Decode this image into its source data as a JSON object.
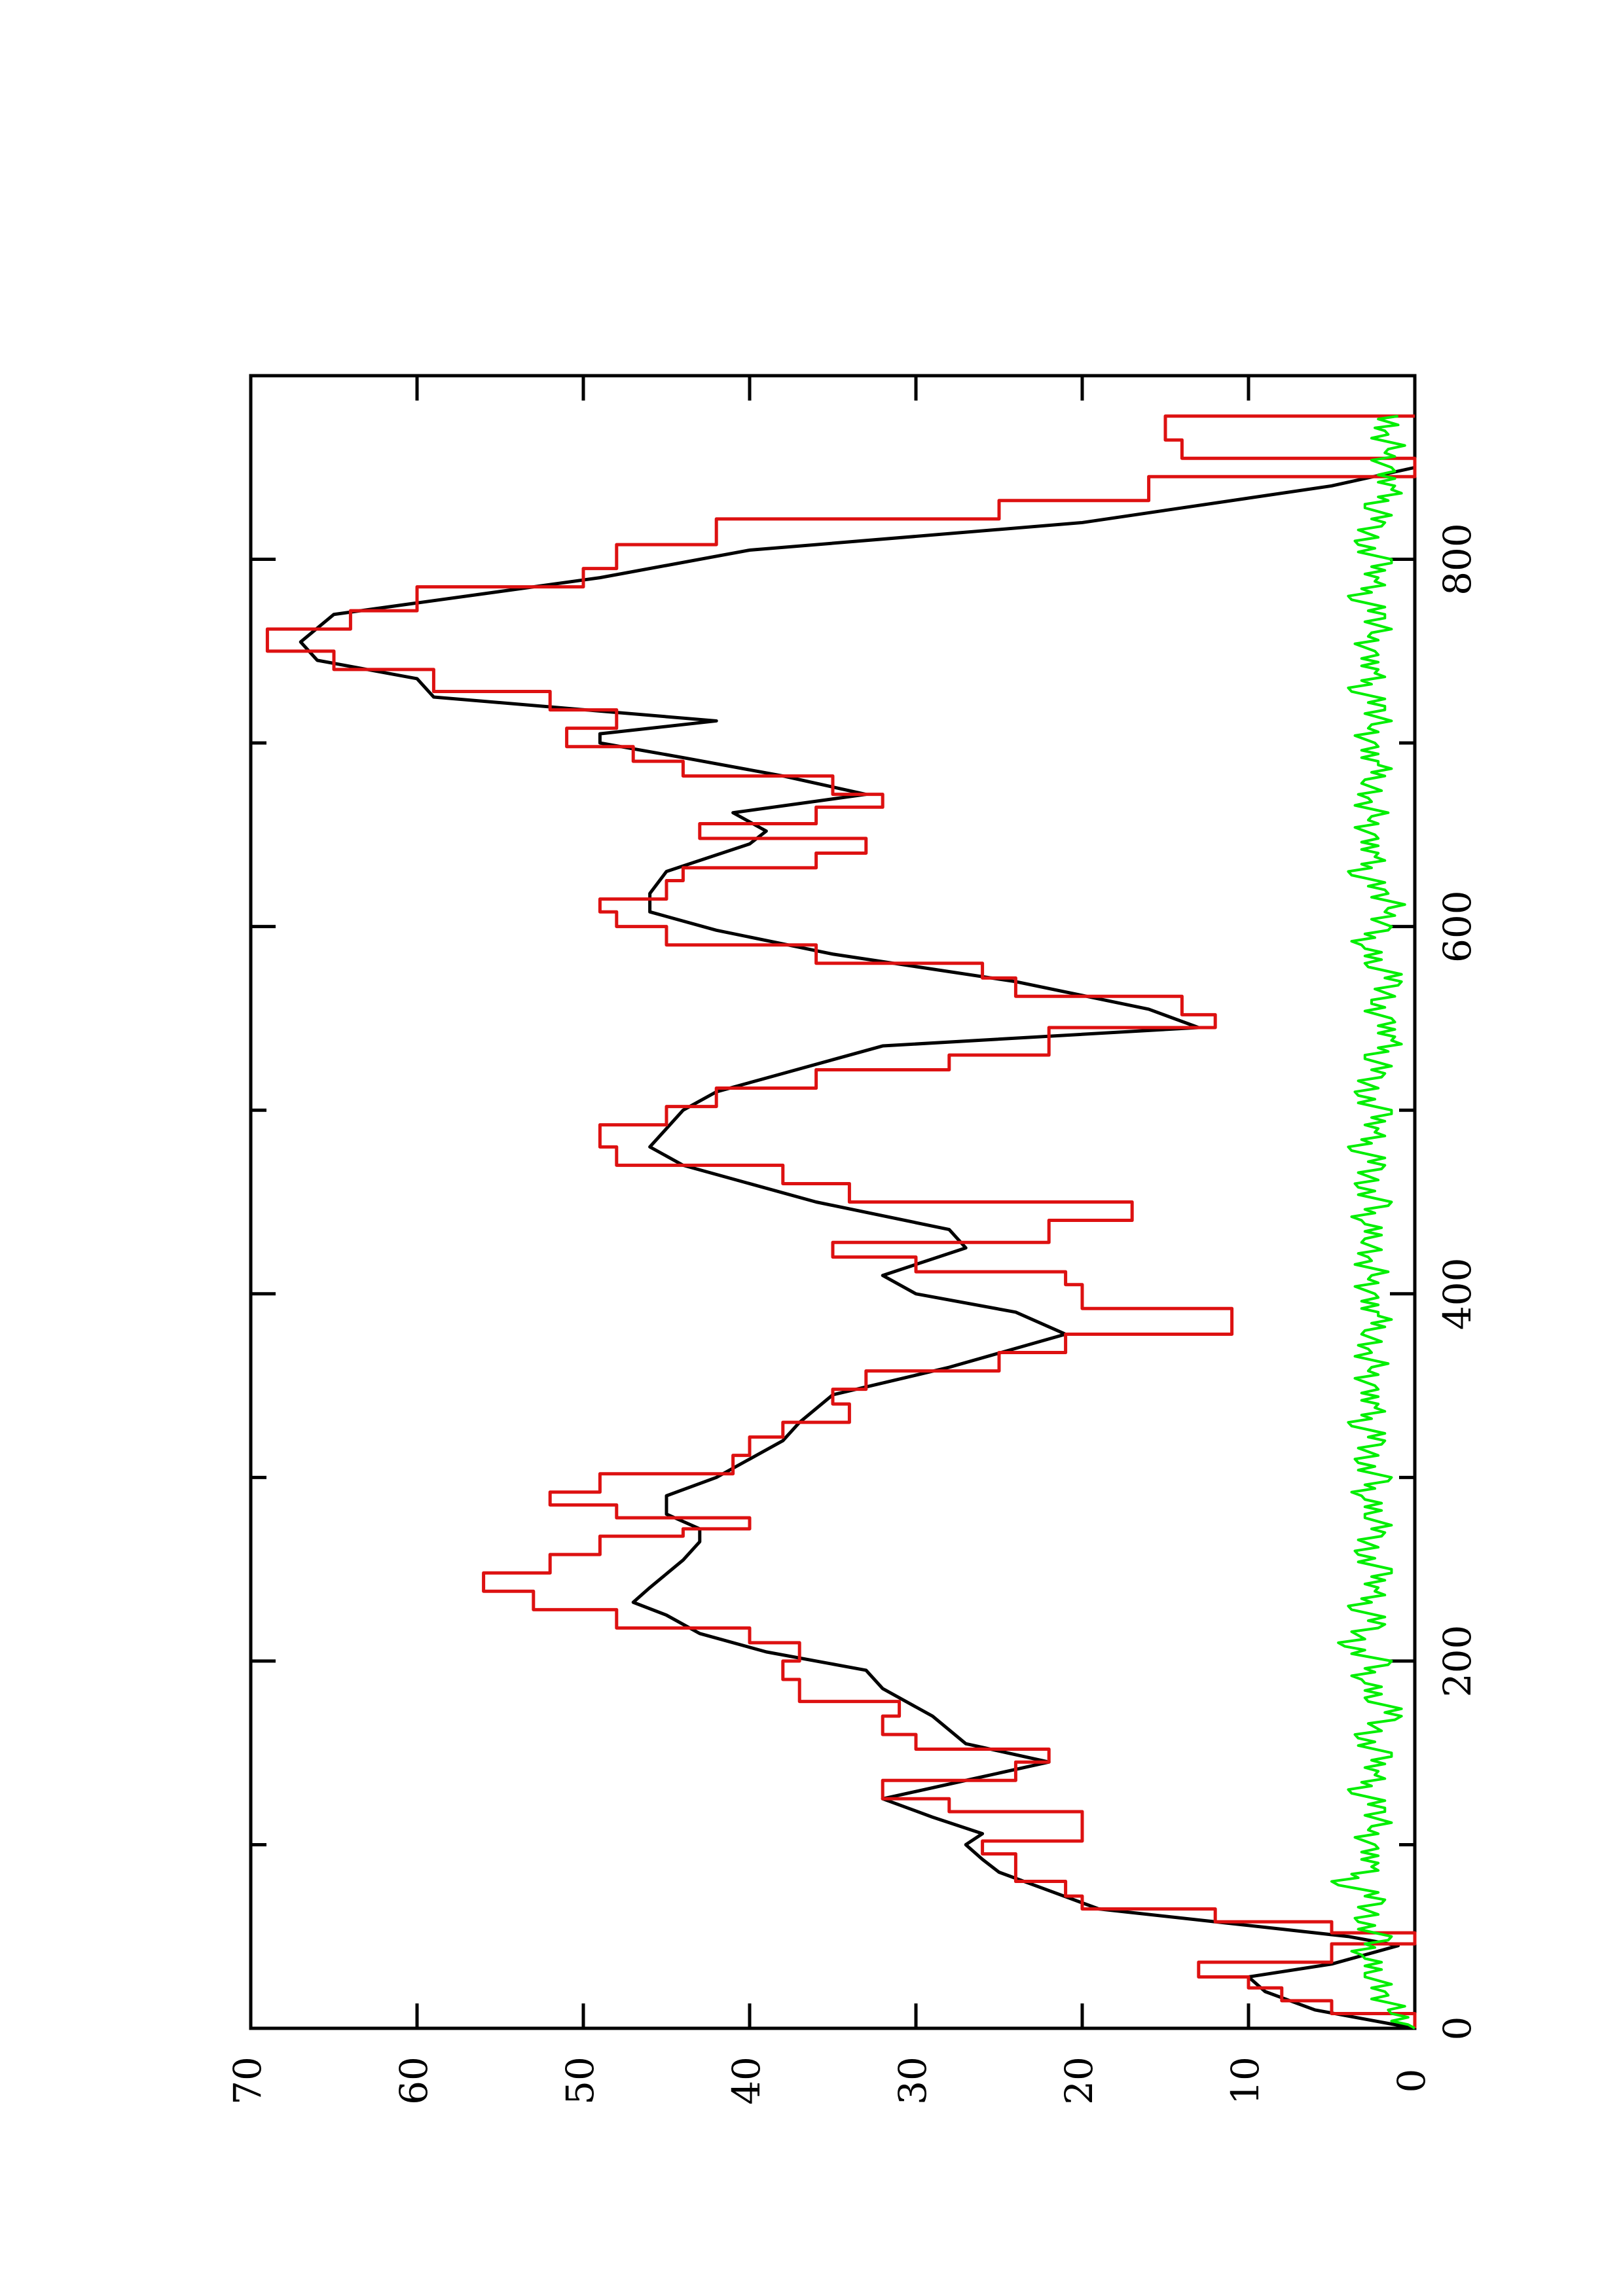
{
  "chart_data": {
    "type": "line",
    "title": "",
    "xlabel": "",
    "ylabel": "",
    "orientation": "rotated 90 degrees counter-clockwise",
    "xlim": [
      0,
      900
    ],
    "ylim": [
      0,
      70
    ],
    "x_ticks": [
      0,
      200,
      400,
      600,
      800
    ],
    "x_tick_labels": [
      "0",
      "200",
      "400",
      "600",
      "800"
    ],
    "x_minor_ticks": [
      100,
      300,
      500,
      700
    ],
    "y_ticks": [
      0,
      10,
      20,
      30,
      40,
      50,
      60,
      70
    ],
    "y_tick_labels": [
      "0",
      "10",
      "20",
      "30",
      "40",
      "50",
      "60",
      "70"
    ],
    "grid": false,
    "legend": "none",
    "series": [
      {
        "color": "#000000",
        "style": "smooth",
        "points": [
          [
            0,
            0
          ],
          [
            10,
            6
          ],
          [
            20,
            9
          ],
          [
            28,
            10
          ],
          [
            35,
            5
          ],
          [
            45,
            1
          ],
          [
            50,
            4
          ],
          [
            58,
            12
          ],
          [
            65,
            19
          ],
          [
            75,
            22
          ],
          [
            85,
            25
          ],
          [
            92,
            26
          ],
          [
            100,
            27
          ],
          [
            106,
            26
          ],
          [
            115,
            29
          ],
          [
            125,
            32
          ],
          [
            135,
            27
          ],
          [
            145,
            22
          ],
          [
            155,
            27
          ],
          [
            170,
            29
          ],
          [
            185,
            32
          ],
          [
            195,
            33
          ],
          [
            205,
            39
          ],
          [
            215,
            43
          ],
          [
            225,
            45
          ],
          [
            232,
            47
          ],
          [
            240,
            46
          ],
          [
            255,
            44
          ],
          [
            265,
            43
          ],
          [
            272,
            43
          ],
          [
            280,
            45
          ],
          [
            290,
            45
          ],
          [
            300,
            42
          ],
          [
            310,
            40
          ],
          [
            320,
            38
          ],
          [
            330,
            37
          ],
          [
            345,
            35
          ],
          [
            360,
            28
          ],
          [
            378,
            21
          ],
          [
            390,
            24
          ],
          [
            400,
            30
          ],
          [
            410,
            32
          ],
          [
            425,
            27
          ],
          [
            435,
            28
          ],
          [
            450,
            36
          ],
          [
            460,
            40
          ],
          [
            470,
            44
          ],
          [
            480,
            46
          ],
          [
            490,
            45
          ],
          [
            500,
            44
          ],
          [
            510,
            42
          ],
          [
            520,
            38
          ],
          [
            535,
            32
          ],
          [
            545,
            13
          ],
          [
            555,
            16
          ],
          [
            570,
            24
          ],
          [
            585,
            35
          ],
          [
            598,
            42
          ],
          [
            608,
            46
          ],
          [
            618,
            46
          ],
          [
            630,
            45
          ],
          [
            645,
            40
          ],
          [
            652,
            39
          ],
          [
            662,
            41
          ],
          [
            672,
            33
          ],
          [
            682,
            38
          ],
          [
            692,
            44
          ],
          [
            700,
            49
          ],
          [
            705,
            49
          ],
          [
            712,
            42
          ],
          [
            725,
            59
          ],
          [
            735,
            60
          ],
          [
            745,
            66
          ],
          [
            755,
            67
          ],
          [
            770,
            65
          ],
          [
            790,
            49
          ],
          [
            805,
            40
          ],
          [
            820,
            20
          ],
          [
            840,
            5
          ],
          [
            850,
            0
          ]
        ]
      },
      {
        "color": "#dd1111",
        "style": "steps",
        "points": [
          [
            0,
            0
          ],
          [
            8,
            5
          ],
          [
            15,
            8
          ],
          [
            22,
            10
          ],
          [
            28,
            13
          ],
          [
            36,
            5
          ],
          [
            46,
            0
          ],
          [
            52,
            5
          ],
          [
            58,
            12
          ],
          [
            65,
            20
          ],
          [
            72,
            21
          ],
          [
            80,
            24
          ],
          [
            88,
            24
          ],
          [
            95,
            26
          ],
          [
            102,
            20
          ],
          [
            110,
            20
          ],
          [
            118,
            28
          ],
          [
            125,
            32
          ],
          [
            135,
            24
          ],
          [
            145,
            22
          ],
          [
            152,
            30
          ],
          [
            160,
            32
          ],
          [
            170,
            31
          ],
          [
            178,
            37
          ],
          [
            190,
            38
          ],
          [
            200,
            37
          ],
          [
            210,
            40
          ],
          [
            218,
            48
          ],
          [
            228,
            53
          ],
          [
            238,
            56
          ],
          [
            248,
            52
          ],
          [
            258,
            49
          ],
          [
            268,
            44
          ],
          [
            272,
            40
          ],
          [
            278,
            48
          ],
          [
            285,
            52
          ],
          [
            292,
            49
          ],
          [
            302,
            41
          ],
          [
            312,
            40
          ],
          [
            322,
            38
          ],
          [
            330,
            34
          ],
          [
            340,
            35
          ],
          [
            348,
            33
          ],
          [
            358,
            25
          ],
          [
            368,
            21
          ],
          [
            378,
            11
          ],
          [
            392,
            20
          ],
          [
            405,
            21
          ],
          [
            412,
            30
          ],
          [
            420,
            35
          ],
          [
            428,
            22
          ],
          [
            440,
            17
          ],
          [
            450,
            34
          ],
          [
            460,
            38
          ],
          [
            470,
            48
          ],
          [
            480,
            49
          ],
          [
            492,
            45
          ],
          [
            502,
            42
          ],
          [
            512,
            36
          ],
          [
            522,
            28
          ],
          [
            530,
            22
          ],
          [
            545,
            12
          ],
          [
            552,
            14
          ],
          [
            562,
            24
          ],
          [
            572,
            26
          ],
          [
            580,
            36
          ],
          [
            590,
            45
          ],
          [
            600,
            48
          ],
          [
            608,
            49
          ],
          [
            615,
            45
          ],
          [
            625,
            44
          ],
          [
            632,
            36
          ],
          [
            640,
            33
          ],
          [
            648,
            43
          ],
          [
            656,
            36
          ],
          [
            665,
            32
          ],
          [
            672,
            35
          ],
          [
            682,
            44
          ],
          [
            690,
            47
          ],
          [
            698,
            51
          ],
          [
            708,
            48
          ],
          [
            718,
            52
          ],
          [
            728,
            59
          ],
          [
            740,
            65
          ],
          [
            750,
            69
          ],
          [
            762,
            64
          ],
          [
            772,
            60
          ],
          [
            785,
            50
          ],
          [
            795,
            48
          ],
          [
            808,
            42
          ],
          [
            822,
            25
          ],
          [
            832,
            16
          ],
          [
            845,
            0
          ],
          [
            855,
            14
          ],
          [
            865,
            15
          ],
          [
            878,
            0
          ]
        ]
      },
      {
        "color": "#00ee00",
        "style": "noise",
        "points": [
          [
            0,
            0
          ],
          [
            10,
            1
          ],
          [
            20,
            2
          ],
          [
            30,
            2
          ],
          [
            40,
            3
          ],
          [
            50,
            2
          ],
          [
            60,
            3
          ],
          [
            70,
            2
          ],
          [
            80,
            4
          ],
          [
            90,
            2
          ],
          [
            100,
            3
          ],
          [
            110,
            2
          ],
          [
            120,
            2
          ],
          [
            130,
            3
          ],
          [
            140,
            2
          ],
          [
            150,
            2
          ],
          [
            160,
            3
          ],
          [
            170,
            1
          ],
          [
            180,
            2
          ],
          [
            190,
            3
          ],
          [
            200,
            2
          ],
          [
            210,
            4
          ],
          [
            220,
            2
          ],
          [
            230,
            3
          ],
          [
            240,
            2
          ],
          [
            250,
            2
          ],
          [
            260,
            3
          ],
          [
            270,
            2
          ],
          [
            280,
            2
          ],
          [
            290,
            3
          ],
          [
            300,
            2
          ],
          [
            310,
            3
          ],
          [
            320,
            2
          ],
          [
            330,
            3
          ],
          [
            340,
            2
          ],
          [
            350,
            3
          ],
          [
            360,
            2
          ],
          [
            370,
            3
          ],
          [
            380,
            2
          ],
          [
            390,
            2
          ],
          [
            400,
            3
          ],
          [
            410,
            2
          ],
          [
            420,
            3
          ],
          [
            430,
            2
          ],
          [
            440,
            3
          ],
          [
            450,
            2
          ],
          [
            460,
            3
          ],
          [
            470,
            2
          ],
          [
            480,
            3
          ],
          [
            490,
            2
          ],
          [
            500,
            2
          ],
          [
            510,
            3
          ],
          [
            520,
            2
          ],
          [
            530,
            2
          ],
          [
            540,
            1
          ],
          [
            550,
            2
          ],
          [
            560,
            2
          ],
          [
            570,
            1
          ],
          [
            580,
            2
          ],
          [
            590,
            3
          ],
          [
            600,
            2
          ],
          [
            610,
            1
          ],
          [
            620,
            2
          ],
          [
            630,
            3
          ],
          [
            640,
            2
          ],
          [
            650,
            3
          ],
          [
            660,
            2
          ],
          [
            670,
            3
          ],
          [
            680,
            2
          ],
          [
            690,
            2
          ],
          [
            700,
            3
          ],
          [
            710,
            2
          ],
          [
            720,
            2
          ],
          [
            730,
            3
          ],
          [
            740,
            2
          ],
          [
            750,
            3
          ],
          [
            760,
            2
          ],
          [
            770,
            2
          ],
          [
            780,
            3
          ],
          [
            790,
            2
          ],
          [
            800,
            2
          ],
          [
            810,
            3
          ],
          [
            820,
            2
          ],
          [
            830,
            2
          ],
          [
            840,
            1
          ],
          [
            850,
            2
          ],
          [
            860,
            1
          ],
          [
            870,
            2
          ],
          [
            878,
            1
          ]
        ]
      }
    ]
  }
}
